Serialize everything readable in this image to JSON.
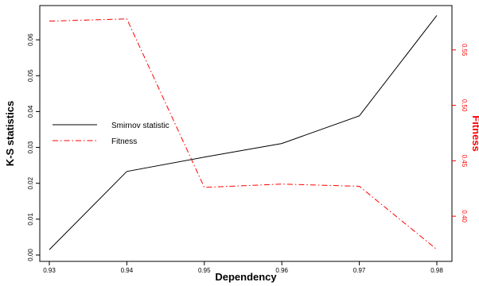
{
  "chart_data": {
    "type": "line",
    "title": "",
    "xlabel": "Dependency",
    "ylabel": "K-S statistics",
    "y2label": "Fitness",
    "x": [
      0.93,
      0.94,
      0.95,
      0.96,
      0.97,
      0.98
    ],
    "x_ticks": [
      "0.93",
      "0.94",
      "0.95",
      "0.96",
      "0.97",
      "0.98"
    ],
    "xlim": [
      0.93,
      0.98
    ],
    "ylim": [
      0.0,
      0.068
    ],
    "y_ticks": [
      "0.00",
      "0.01",
      "0.02",
      "0.03",
      "0.04",
      "0.05",
      "0.06"
    ],
    "y2lim": [
      0.365,
      0.585
    ],
    "y2_ticks": [
      "0.40",
      "0.45",
      "0.50",
      "0.55"
    ],
    "grid": false,
    "legend_position": "middle-left",
    "series": [
      {
        "name": "Smirnov statistic",
        "axis": "left",
        "color": "#000000",
        "line_style": "solid",
        "values": [
          0.0015,
          0.0233,
          0.0273,
          0.0311,
          0.0388,
          0.0668
        ]
      },
      {
        "name": "Fitness",
        "axis": "right",
        "color": "#ff0000",
        "line_style": "dash-dot",
        "values": [
          0.576,
          0.578,
          0.426,
          0.429,
          0.427,
          0.37
        ]
      }
    ],
    "colors": {
      "left_axis": "#000000",
      "right_axis": "#ff0000"
    }
  }
}
